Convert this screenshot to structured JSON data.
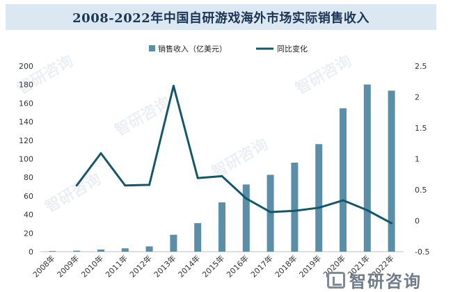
{
  "chart_data": {
    "type": "bar+line",
    "title": "2008-2022年中国自研游戏海外市场实际销售收入",
    "categories": [
      "2008年",
      "2009年",
      "2010年",
      "2011年",
      "2012年",
      "2013年",
      "2014年",
      "2015年",
      "2016年",
      "2017年",
      "2018年",
      "2019年",
      "2020年",
      "2021年",
      "2022年"
    ],
    "series": [
      {
        "name": "销售收入（亿美元）",
        "type": "bar",
        "axis": "left",
        "color": "#5b8fa8",
        "values": [
          0.7,
          1.1,
          2.3,
          3.6,
          5.7,
          18.2,
          30.8,
          53.1,
          72.4,
          82.8,
          95.9,
          115.9,
          154.5,
          180.1,
          173.5
        ]
      },
      {
        "name": "同比变化",
        "type": "line",
        "axis": "right",
        "color": "#14576d",
        "values": [
          null,
          0.57,
          1.09,
          0.57,
          0.58,
          2.18,
          0.69,
          0.72,
          0.36,
          0.14,
          0.16,
          0.21,
          0.33,
          0.17,
          -0.04
        ]
      }
    ],
    "y_left": {
      "min": 0,
      "max": 200,
      "step": 20,
      "ticks": [
        "0",
        "20",
        "40",
        "60",
        "80",
        "100",
        "120",
        "140",
        "160",
        "180",
        "200"
      ]
    },
    "y_right": {
      "min": -0.5,
      "max": 2.5,
      "step": 0.5,
      "ticks": [
        "-0.5",
        "0",
        "0.5",
        "1",
        "1.5",
        "2",
        "2.5"
      ]
    },
    "legend_position": "top-center",
    "grid": false
  },
  "watermark": {
    "text": "智研咨询",
    "logo_text": "智研咨询"
  }
}
